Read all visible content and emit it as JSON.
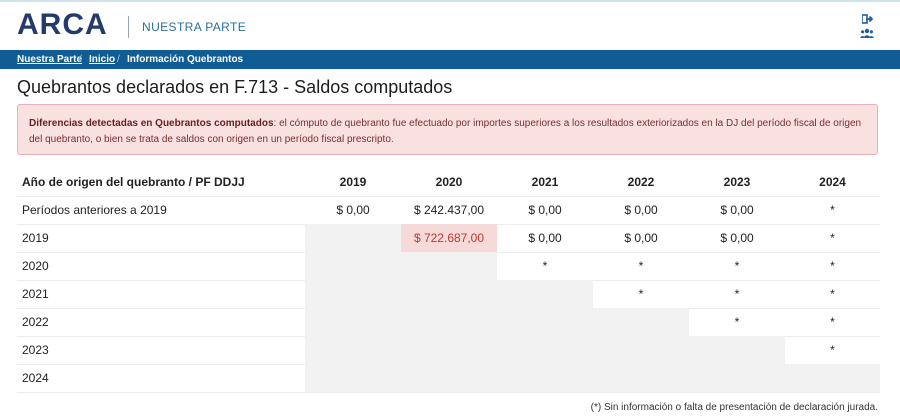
{
  "header": {
    "logo": "ARCA",
    "subtitle": "NUESTRA PARTE",
    "logout_icon": "logout-icon",
    "users_icon": "users-icon"
  },
  "breadcrumb": {
    "items": [
      "Nuestra Parte",
      "Inicio",
      "Información Quebrantos"
    ],
    "separator": "/"
  },
  "page": {
    "title": "Quebrantos declarados en F.713 - Saldos computados"
  },
  "alert": {
    "bold": "Diferencias detectadas en Quebrantos computados",
    "text": ": el cómputo de quebranto fue efectuado por importes superiores a los resultados exteriorizados en la DJ del período fiscal de origen del quebranto, o bien se trata de saldos con origen en un período fiscal prescripto."
  },
  "table": {
    "headers": [
      "Año de origen del quebranto / PF DDJJ",
      "2019",
      "2020",
      "2021",
      "2022",
      "2023",
      "2024"
    ],
    "rows": [
      [
        "Períodos anteriores a 2019",
        "$ 0,00",
        "$ 242.437,00",
        "$ 0,00",
        "$ 0,00",
        "$ 0,00",
        "*"
      ],
      [
        "2019",
        "",
        "$ 722.687,00",
        "$ 0,00",
        "$ 0,00",
        "$ 0,00",
        "*"
      ],
      [
        "2020",
        "",
        "",
        "*",
        "*",
        "*",
        "*"
      ],
      [
        "2021",
        "",
        "",
        "",
        "*",
        "*",
        "*"
      ],
      [
        "2022",
        "",
        "",
        "",
        "",
        "*",
        "*"
      ],
      [
        "2023",
        "",
        "",
        "",
        "",
        "",
        "*"
      ],
      [
        "2024",
        "",
        "",
        "",
        "",
        "",
        ""
      ]
    ],
    "highlight": {
      "row": 1,
      "col": 2,
      "color": "#c0392b"
    }
  },
  "footnote": "(*) Sin información o falta de presentación de declaración jurada."
}
